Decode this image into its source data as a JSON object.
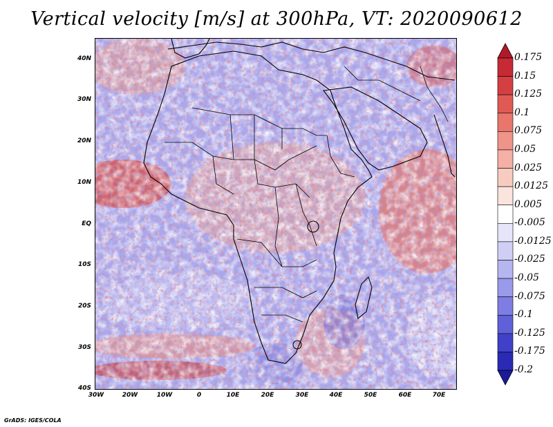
{
  "title": "Vertical velocity [m/s] at 300hPa, VT: 2020090612",
  "credit": "GrADS: IGES/COLA",
  "map": {
    "lat_labels": [
      "40N",
      "30N",
      "20N",
      "10N",
      "EQ",
      "10S",
      "20S",
      "30S",
      "40S"
    ],
    "lon_labels": [
      "30W",
      "20W",
      "10W",
      "0",
      "10E",
      "20E",
      "30E",
      "40E",
      "50E",
      "60E",
      "70E"
    ],
    "field": "vertical velocity at 300hPa"
  },
  "colorbar": {
    "levels": [
      "0.175",
      "0.15",
      "0.125",
      "0.1",
      "0.075",
      "0.05",
      "0.025",
      "0.0125",
      "0.005",
      "-0.005",
      "-0.0125",
      "-0.025",
      "-0.05",
      "-0.075",
      "-0.1",
      "-0.125",
      "-0.175",
      "-0.2"
    ],
    "colors": [
      "#b2182b",
      "#c62a35",
      "#d43f41",
      "#e05a55",
      "#e8766c",
      "#ef9488",
      "#f4b0a4",
      "#f8cbc1",
      "#fbe4dd",
      "#ffffff",
      "#e6e6fb",
      "#cfcff6",
      "#b5b5f0",
      "#9a9aea",
      "#7e7ee2",
      "#6060d8",
      "#4040c8",
      "#2a2ab4",
      "#1a1a9c"
    ]
  }
}
